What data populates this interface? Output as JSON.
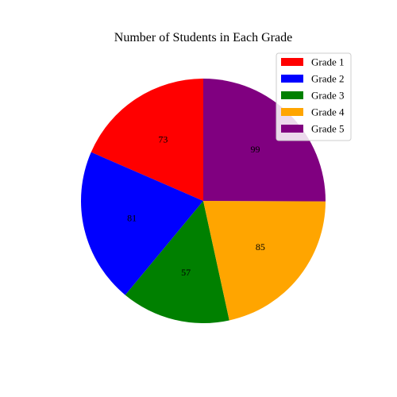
{
  "chart_data": {
    "type": "pie",
    "title": "Number of Students in Each Grade",
    "categories": [
      "Grade 1",
      "Grade 2",
      "Grade 3",
      "Grade 4",
      "Grade 5"
    ],
    "values": [
      73,
      81,
      57,
      85,
      99
    ],
    "colors": [
      "#ff0000",
      "#0000ff",
      "#008000",
      "#ffa500",
      "#800080"
    ],
    "start_angle_deg": 90,
    "direction": "counterclockwise",
    "legend_position": "top-right"
  }
}
